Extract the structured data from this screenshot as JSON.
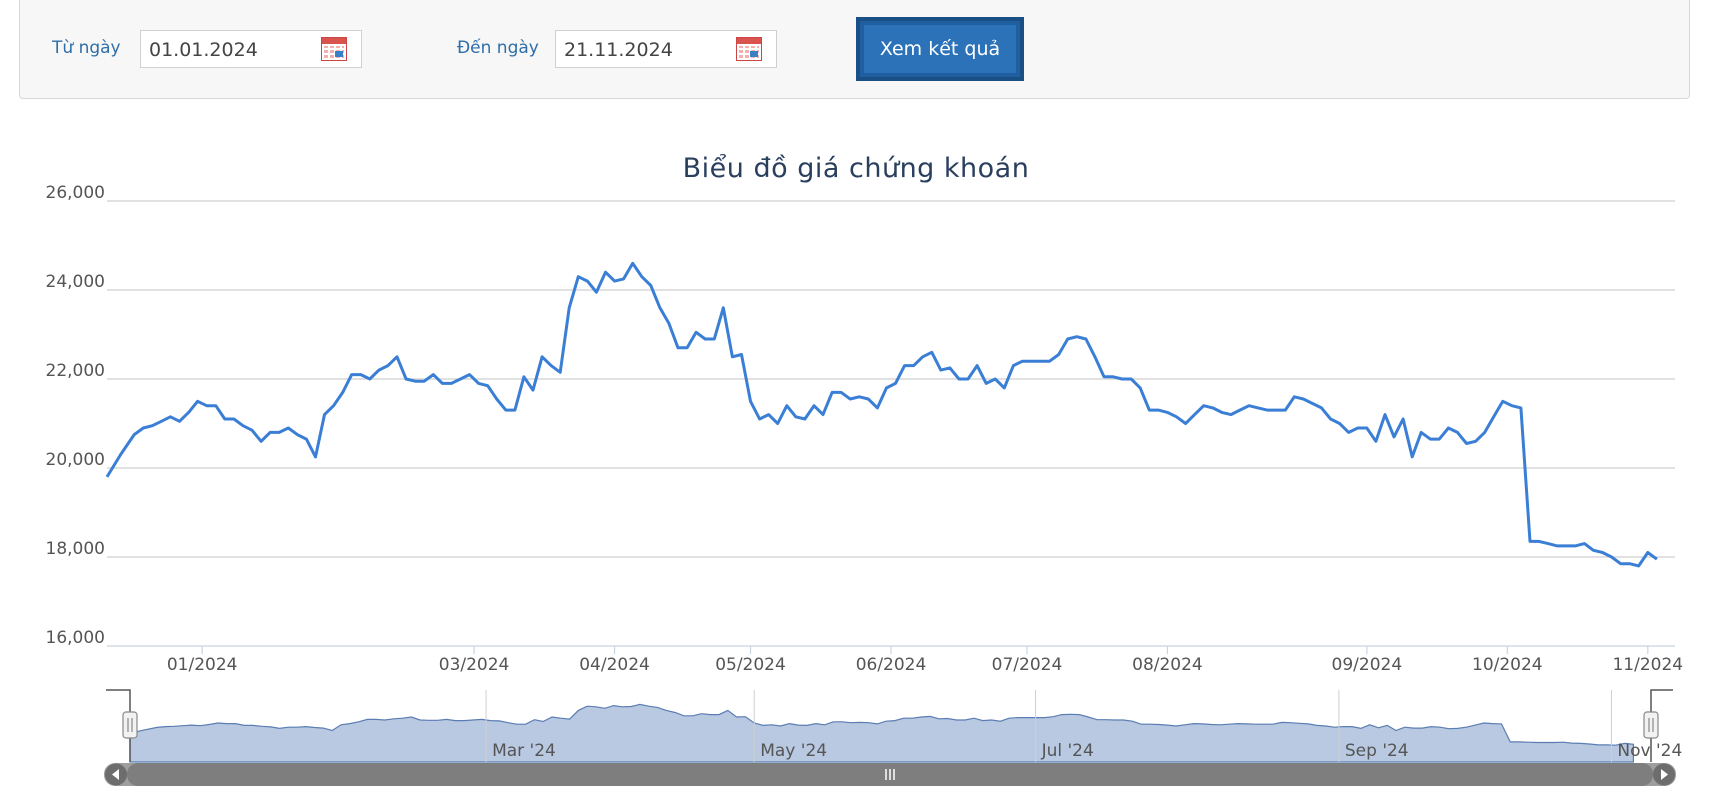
{
  "filter": {
    "from_label": "Từ ngày",
    "from_value": "01.01.2024",
    "to_label": "Đến ngày",
    "to_value": "21.11.2024",
    "submit_label": "Xem kết quả"
  },
  "colors": {
    "line": "#3a7fd5",
    "navigator_fill": "#b8c9e1",
    "accent": "#2b72b8"
  },
  "chart_data": {
    "type": "line",
    "title": "Biểu đồ giá chứng khoán",
    "ylim": [
      16000,
      26000
    ],
    "y_ticks": [
      16000,
      18000,
      20000,
      22000,
      24000,
      26000
    ],
    "y_tick_labels": [
      "16,000",
      "18,000",
      "20,000",
      "22,000",
      "24,000",
      "26,000"
    ],
    "x_range": [
      "2023-12-11",
      "2024-11-21"
    ],
    "x_ticks": [
      {
        "date": "2024-01-01",
        "label": "01/2024"
      },
      {
        "date": "2024-03-01",
        "label": "03/2024"
      },
      {
        "date": "2024-04-01",
        "label": "04/2024"
      },
      {
        "date": "2024-05-01",
        "label": "05/2024"
      },
      {
        "date": "2024-06-01",
        "label": "06/2024"
      },
      {
        "date": "2024-07-01",
        "label": "07/2024"
      },
      {
        "date": "2024-08-01",
        "label": "08/2024"
      },
      {
        "date": "2024-09-14",
        "label": "09/2024"
      },
      {
        "date": "2024-10-15",
        "label": "10/2024"
      },
      {
        "date": "2024-11-15",
        "label": "11/2024"
      }
    ],
    "navigator_labels": [
      {
        "date": "2024-03-01",
        "label": "Mar '24"
      },
      {
        "date": "2024-05-01",
        "label": "May '24"
      },
      {
        "date": "2024-07-04",
        "label": "Jul '24"
      },
      {
        "date": "2024-09-11",
        "label": "Sep '24"
      },
      {
        "date": "2024-11-12",
        "label": "Nov '24"
      }
    ],
    "grid": true,
    "legend": "none",
    "series": [
      {
        "values": [
          [
            "2023-12-11",
            19800
          ],
          [
            "2023-12-14",
            20300
          ],
          [
            "2023-12-17",
            20750
          ],
          [
            "2023-12-19",
            20900
          ],
          [
            "2023-12-21",
            20950
          ],
          [
            "2023-12-23",
            21050
          ],
          [
            "2023-12-25",
            21150
          ],
          [
            "2023-12-27",
            21050
          ],
          [
            "2023-12-29",
            21250
          ],
          [
            "2023-12-31",
            21500
          ],
          [
            "2024-01-02",
            21400
          ],
          [
            "2024-01-04",
            21400
          ],
          [
            "2024-01-06",
            21100
          ],
          [
            "2024-01-08",
            21100
          ],
          [
            "2024-01-10",
            20950
          ],
          [
            "2024-01-12",
            20850
          ],
          [
            "2024-01-14",
            20600
          ],
          [
            "2024-01-16",
            20800
          ],
          [
            "2024-01-18",
            20800
          ],
          [
            "2024-01-20",
            20900
          ],
          [
            "2024-01-22",
            20750
          ],
          [
            "2024-01-24",
            20650
          ],
          [
            "2024-01-26",
            20250
          ],
          [
            "2024-01-28",
            21200
          ],
          [
            "2024-01-30",
            21400
          ],
          [
            "2024-02-01",
            21700
          ],
          [
            "2024-02-03",
            22100
          ],
          [
            "2024-02-05",
            22100
          ],
          [
            "2024-02-07",
            22000
          ],
          [
            "2024-02-09",
            22200
          ],
          [
            "2024-02-11",
            22300
          ],
          [
            "2024-02-13",
            22500
          ],
          [
            "2024-02-15",
            22000
          ],
          [
            "2024-02-17",
            21950
          ],
          [
            "2024-02-19",
            21950
          ],
          [
            "2024-02-21",
            22100
          ],
          [
            "2024-02-23",
            21900
          ],
          [
            "2024-02-25",
            21900
          ],
          [
            "2024-02-27",
            22000
          ],
          [
            "2024-02-29",
            22100
          ],
          [
            "2024-03-02",
            21900
          ],
          [
            "2024-03-04",
            21850
          ],
          [
            "2024-03-06",
            21550
          ],
          [
            "2024-03-08",
            21300
          ],
          [
            "2024-03-10",
            21300
          ],
          [
            "2024-03-12",
            22050
          ],
          [
            "2024-03-14",
            21750
          ],
          [
            "2024-03-16",
            22500
          ],
          [
            "2024-03-18",
            22300
          ],
          [
            "2024-03-20",
            22150
          ],
          [
            "2024-03-22",
            23600
          ],
          [
            "2024-03-24",
            24300
          ],
          [
            "2024-03-26",
            24200
          ],
          [
            "2024-03-28",
            23950
          ],
          [
            "2024-03-30",
            24400
          ],
          [
            "2024-04-01",
            24200
          ],
          [
            "2024-04-03",
            24250
          ],
          [
            "2024-04-05",
            24600
          ],
          [
            "2024-04-07",
            24300
          ],
          [
            "2024-04-09",
            24100
          ],
          [
            "2024-04-11",
            23600
          ],
          [
            "2024-04-13",
            23250
          ],
          [
            "2024-04-15",
            22700
          ],
          [
            "2024-04-17",
            22700
          ],
          [
            "2024-04-19",
            23050
          ],
          [
            "2024-04-21",
            22900
          ],
          [
            "2024-04-23",
            22900
          ],
          [
            "2024-04-25",
            23600
          ],
          [
            "2024-04-27",
            22500
          ],
          [
            "2024-04-29",
            22550
          ],
          [
            "2024-05-01",
            21500
          ],
          [
            "2024-05-03",
            21100
          ],
          [
            "2024-05-05",
            21200
          ],
          [
            "2024-05-07",
            21000
          ],
          [
            "2024-05-09",
            21400
          ],
          [
            "2024-05-11",
            21150
          ],
          [
            "2024-05-13",
            21100
          ],
          [
            "2024-05-15",
            21400
          ],
          [
            "2024-05-17",
            21200
          ],
          [
            "2024-05-19",
            21700
          ],
          [
            "2024-05-21",
            21700
          ],
          [
            "2024-05-23",
            21550
          ],
          [
            "2024-05-25",
            21600
          ],
          [
            "2024-05-27",
            21550
          ],
          [
            "2024-05-29",
            21350
          ],
          [
            "2024-05-31",
            21800
          ],
          [
            "2024-06-02",
            21900
          ],
          [
            "2024-06-04",
            22300
          ],
          [
            "2024-06-06",
            22300
          ],
          [
            "2024-06-08",
            22500
          ],
          [
            "2024-06-10",
            22600
          ],
          [
            "2024-06-12",
            22200
          ],
          [
            "2024-06-14",
            22250
          ],
          [
            "2024-06-16",
            22000
          ],
          [
            "2024-06-18",
            22000
          ],
          [
            "2024-06-20",
            22300
          ],
          [
            "2024-06-22",
            21900
          ],
          [
            "2024-06-24",
            22000
          ],
          [
            "2024-06-26",
            21800
          ],
          [
            "2024-06-28",
            22300
          ],
          [
            "2024-06-30",
            22400
          ],
          [
            "2024-07-02",
            22400
          ],
          [
            "2024-07-04",
            22400
          ],
          [
            "2024-07-06",
            22400
          ],
          [
            "2024-07-08",
            22550
          ],
          [
            "2024-07-10",
            22900
          ],
          [
            "2024-07-12",
            22950
          ],
          [
            "2024-07-14",
            22900
          ],
          [
            "2024-07-16",
            22500
          ],
          [
            "2024-07-18",
            22050
          ],
          [
            "2024-07-20",
            22050
          ],
          [
            "2024-07-22",
            22000
          ],
          [
            "2024-07-24",
            22000
          ],
          [
            "2024-07-26",
            21800
          ],
          [
            "2024-07-28",
            21300
          ],
          [
            "2024-07-30",
            21300
          ],
          [
            "2024-08-01",
            21250
          ],
          [
            "2024-08-03",
            21150
          ],
          [
            "2024-08-05",
            21000
          ],
          [
            "2024-08-07",
            21200
          ],
          [
            "2024-08-09",
            21400
          ],
          [
            "2024-08-11",
            21350
          ],
          [
            "2024-08-13",
            21250
          ],
          [
            "2024-08-15",
            21200
          ],
          [
            "2024-08-17",
            21300
          ],
          [
            "2024-08-19",
            21400
          ],
          [
            "2024-08-21",
            21350
          ],
          [
            "2024-08-23",
            21300
          ],
          [
            "2024-08-25",
            21300
          ],
          [
            "2024-08-27",
            21300
          ],
          [
            "2024-08-29",
            21600
          ],
          [
            "2024-08-31",
            21550
          ],
          [
            "2024-09-02",
            21450
          ],
          [
            "2024-09-04",
            21350
          ],
          [
            "2024-09-06",
            21100
          ],
          [
            "2024-09-08",
            21000
          ],
          [
            "2024-09-10",
            20800
          ],
          [
            "2024-09-12",
            20900
          ],
          [
            "2024-09-14",
            20900
          ],
          [
            "2024-09-16",
            20600
          ],
          [
            "2024-09-18",
            21200
          ],
          [
            "2024-09-20",
            20700
          ],
          [
            "2024-09-22",
            21100
          ],
          [
            "2024-09-24",
            20250
          ],
          [
            "2024-09-26",
            20800
          ],
          [
            "2024-09-28",
            20650
          ],
          [
            "2024-09-30",
            20650
          ],
          [
            "2024-10-02",
            20900
          ],
          [
            "2024-10-04",
            20800
          ],
          [
            "2024-10-06",
            20550
          ],
          [
            "2024-10-08",
            20600
          ],
          [
            "2024-10-10",
            20800
          ],
          [
            "2024-10-12",
            21150
          ],
          [
            "2024-10-14",
            21500
          ],
          [
            "2024-10-16",
            21400
          ],
          [
            "2024-10-18",
            21350
          ],
          [
            "2024-10-20",
            18350
          ],
          [
            "2024-10-22",
            18350
          ],
          [
            "2024-10-24",
            18300
          ],
          [
            "2024-10-26",
            18250
          ],
          [
            "2024-10-28",
            18250
          ],
          [
            "2024-10-30",
            18250
          ],
          [
            "2024-11-01",
            18300
          ],
          [
            "2024-11-03",
            18150
          ],
          [
            "2024-11-05",
            18100
          ],
          [
            "2024-11-07",
            18000
          ],
          [
            "2024-11-09",
            17850
          ],
          [
            "2024-11-11",
            17850
          ],
          [
            "2024-11-13",
            17800
          ],
          [
            "2024-11-15",
            18100
          ],
          [
            "2024-11-17",
            17950
          ]
        ]
      }
    ]
  }
}
